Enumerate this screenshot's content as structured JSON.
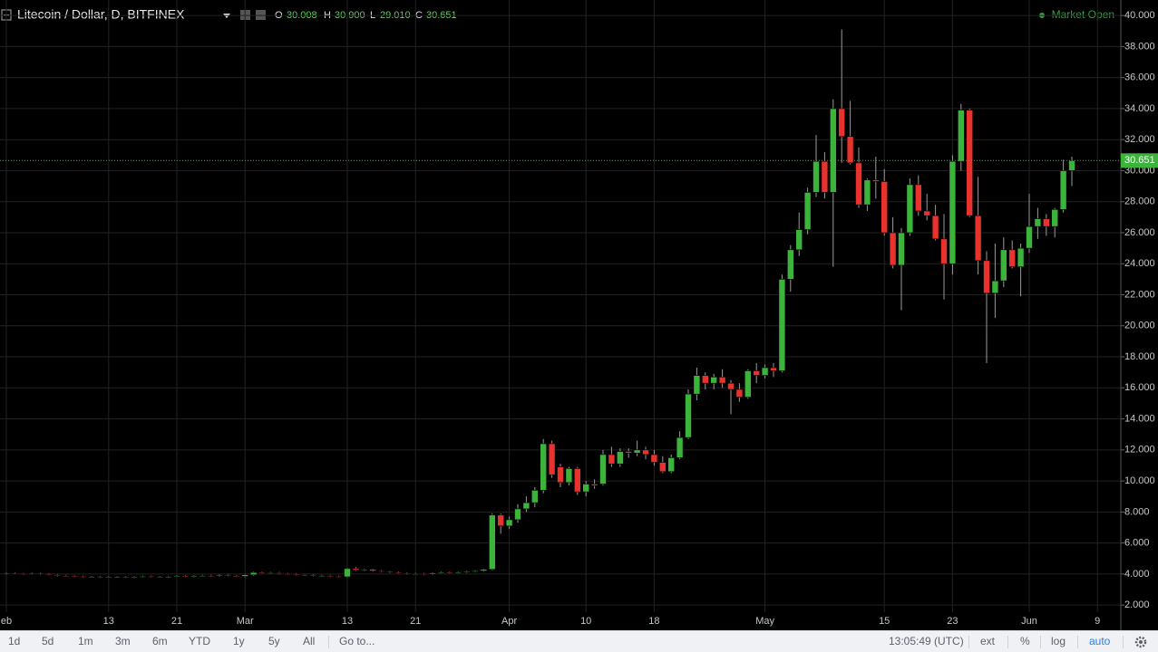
{
  "header": {
    "title": "Litecoin / Dollar, D, BITFINEX",
    "ohlc": [
      {
        "key": "O",
        "value": "30.008"
      },
      {
        "key": "H",
        "value": "30.900"
      },
      {
        "key": "L",
        "value": "29.010"
      },
      {
        "key": "C",
        "value": "30.651"
      }
    ],
    "status": "Market Open"
  },
  "chart_data": {
    "type": "candlestick",
    "up_color": "#3cb43c",
    "down_color": "#e8322e",
    "wick_color": "#9a9a9a",
    "grid": true,
    "categories": [
      "eb",
      null,
      null,
      null,
      null,
      null,
      null,
      null,
      null,
      null,
      null,
      null,
      "13",
      null,
      null,
      null,
      null,
      null,
      null,
      null,
      "21",
      null,
      null,
      null,
      null,
      null,
      null,
      null,
      "Mar",
      null,
      null,
      null,
      null,
      null,
      null,
      null,
      null,
      null,
      null,
      null,
      "13",
      null,
      null,
      null,
      null,
      null,
      null,
      null,
      "21",
      null,
      null,
      null,
      null,
      null,
      null,
      null,
      null,
      null,
      null,
      "Apr",
      null,
      null,
      null,
      null,
      null,
      null,
      null,
      null,
      "10",
      null,
      null,
      null,
      null,
      null,
      null,
      null,
      "18",
      null,
      null,
      null,
      null,
      null,
      null,
      null,
      null,
      null,
      null,
      null,
      null,
      "May",
      null,
      null,
      null,
      null,
      null,
      null,
      null,
      null,
      null,
      null,
      null,
      null,
      null,
      "15",
      null,
      null,
      null,
      null,
      null,
      null,
      null,
      "23",
      null,
      null,
      null,
      null,
      null,
      null,
      null,
      null,
      "Jun",
      null,
      null,
      null,
      null,
      null,
      null,
      null,
      "9"
    ],
    "open": [
      4.0,
      4.05,
      4.02,
      4.0,
      4.03,
      3.98,
      3.95,
      3.9,
      3.88,
      3.85,
      3.8,
      3.82,
      3.78,
      3.8,
      3.82,
      3.79,
      3.83,
      3.85,
      3.82,
      3.8,
      3.84,
      3.86,
      3.83,
      3.88,
      3.9,
      3.86,
      3.92,
      3.88,
      3.85,
      3.95,
      4.1,
      4.05,
      4.08,
      4.02,
      4.0,
      3.95,
      3.92,
      3.88,
      3.9,
      3.85,
      3.82,
      4.35,
      4.25,
      4.3,
      4.2,
      4.15,
      4.1,
      4.05,
      4.0,
      4.02,
      3.98,
      4.05,
      4.1,
      4.05,
      4.1,
      4.15,
      4.2,
      4.3,
      7.8,
      7.1,
      7.5,
      8.2,
      8.6,
      9.4,
      12.4,
      10.9,
      9.9,
      10.8,
      9.3,
      9.8,
      9.8,
      11.7,
      11.1,
      11.9,
      11.8,
      12.0,
      11.7,
      11.2,
      10.6,
      11.5,
      12.8,
      15.6,
      16.8,
      16.3,
      16.7,
      16.3,
      15.9,
      15.4,
      17.1,
      16.8,
      17.3,
      17.1,
      23.0,
      24.9,
      26.2,
      28.6,
      30.6,
      28.6,
      34.0,
      32.2,
      30.5,
      27.8,
      29.4,
      29.3,
      26.0,
      23.9,
      26.0,
      29.1,
      27.4,
      27.1,
      25.6,
      24.0,
      30.6,
      33.9,
      27.1,
      24.2,
      22.1,
      22.9,
      24.9,
      23.8,
      25.0,
      26.4,
      26.9,
      26.4,
      27.5,
      30.008,
      null,
      null,
      null
    ],
    "high": [
      4.1,
      4.1,
      4.07,
      4.08,
      4.08,
      4.03,
      4.0,
      3.95,
      3.93,
      3.9,
      3.87,
      3.87,
      3.85,
      3.87,
      3.87,
      3.88,
      3.9,
      3.9,
      3.87,
      3.89,
      3.91,
      3.91,
      3.93,
      3.95,
      3.95,
      3.97,
      3.97,
      3.93,
      4.0,
      4.15,
      4.15,
      4.13,
      4.13,
      4.07,
      4.05,
      4.0,
      3.97,
      3.95,
      3.95,
      3.9,
      4.4,
      4.45,
      4.35,
      4.35,
      4.25,
      4.2,
      4.15,
      4.1,
      4.07,
      4.07,
      4.1,
      4.15,
      4.15,
      4.15,
      4.2,
      4.25,
      4.35,
      7.9,
      7.9,
      7.7,
      8.5,
      9.0,
      9.6,
      12.7,
      12.6,
      11.1,
      10.9,
      10.9,
      10.0,
      10.1,
      12.0,
      12.2,
      12.1,
      12.1,
      12.6,
      12.2,
      12.0,
      11.6,
      11.7,
      13.2,
      15.9,
      17.3,
      17.0,
      16.9,
      17.2,
      16.5,
      16.3,
      17.2,
      17.6,
      17.5,
      17.6,
      23.3,
      25.2,
      27.3,
      28.9,
      32.3,
      31.2,
      34.6,
      39.1,
      34.5,
      31.5,
      29.5,
      30.9,
      30.1,
      27.0,
      26.3,
      29.5,
      29.7,
      28.5,
      27.8,
      27.2,
      31.0,
      34.3,
      34.0,
      29.6,
      24.8,
      25.3,
      25.7,
      25.5,
      25.3,
      28.5,
      27.6,
      27.2,
      27.6,
      30.7,
      30.9,
      null,
      null,
      null
    ],
    "low": [
      3.95,
      3.97,
      3.95,
      3.95,
      3.93,
      3.9,
      3.85,
      3.83,
      3.8,
      3.75,
      3.75,
      3.73,
      3.73,
      3.75,
      3.74,
      3.74,
      3.78,
      3.77,
      3.75,
      3.75,
      3.79,
      3.78,
      3.78,
      3.83,
      3.81,
      3.81,
      3.83,
      3.8,
      3.8,
      3.9,
      4.0,
      4.0,
      3.97,
      3.95,
      3.9,
      3.87,
      3.83,
      3.83,
      3.8,
      3.77,
      3.77,
      4.2,
      4.2,
      4.15,
      4.1,
      4.05,
      4.0,
      3.95,
      3.95,
      3.93,
      3.93,
      4.0,
      4.0,
      4.0,
      4.05,
      4.1,
      4.15,
      4.25,
      6.6,
      6.9,
      7.3,
      8.0,
      8.3,
      9.2,
      10.2,
      9.6,
      9.7,
      9.1,
      9.0,
      9.5,
      9.7,
      10.9,
      10.9,
      11.5,
      11.6,
      11.4,
      11.0,
      10.5,
      10.5,
      11.4,
      12.7,
      15.2,
      15.9,
      15.9,
      16.0,
      14.3,
      15.1,
      15.3,
      16.3,
      16.6,
      16.7,
      17.0,
      22.2,
      24.5,
      25.9,
      28.3,
      28.2,
      23.8,
      30.5,
      30.4,
      27.6,
      27.4,
      28.2,
      25.8,
      23.7,
      21.0,
      25.8,
      27.1,
      26.8,
      25.5,
      21.7,
      23.3,
      30.0,
      27.0,
      23.3,
      17.6,
      20.5,
      22.5,
      23.7,
      21.9,
      24.7,
      25.6,
      25.8,
      25.7,
      27.3,
      29.01,
      null,
      null,
      null
    ],
    "close": [
      4.05,
      4.02,
      4.0,
      4.03,
      3.98,
      3.95,
      3.9,
      3.88,
      3.85,
      3.8,
      3.82,
      3.78,
      3.8,
      3.82,
      3.79,
      3.83,
      3.85,
      3.82,
      3.8,
      3.84,
      3.86,
      3.83,
      3.88,
      3.9,
      3.86,
      3.92,
      3.88,
      3.85,
      3.95,
      4.1,
      4.05,
      4.08,
      4.02,
      4.0,
      3.95,
      3.92,
      3.88,
      3.9,
      3.85,
      3.82,
      4.35,
      4.25,
      4.3,
      4.2,
      4.15,
      4.1,
      4.05,
      4.0,
      4.02,
      3.98,
      4.05,
      4.1,
      4.05,
      4.1,
      4.15,
      4.2,
      4.3,
      7.8,
      7.1,
      7.5,
      8.2,
      8.6,
      9.4,
      12.4,
      10.4,
      9.9,
      10.8,
      9.3,
      9.8,
      9.7,
      11.7,
      11.1,
      11.9,
      11.8,
      12.0,
      11.7,
      11.2,
      10.6,
      11.5,
      12.8,
      15.6,
      16.8,
      16.3,
      16.7,
      16.3,
      15.9,
      15.4,
      17.1,
      16.8,
      17.3,
      17.1,
      23.0,
      24.9,
      26.2,
      28.6,
      30.6,
      28.6,
      34.0,
      32.2,
      30.5,
      27.8,
      29.4,
      29.3,
      26.0,
      23.9,
      26.0,
      29.1,
      27.4,
      27.1,
      25.6,
      24.0,
      30.6,
      33.9,
      27.1,
      24.2,
      22.1,
      22.9,
      24.9,
      23.8,
      25.0,
      26.4,
      26.9,
      26.4,
      27.5,
      30.0,
      30.651,
      null,
      null,
      null
    ],
    "ylim": [
      0.55,
      41.0
    ],
    "yticks": [
      {
        "value": 2,
        "label": "2.000"
      },
      {
        "value": 4,
        "label": "4.000"
      },
      {
        "value": 6,
        "label": "6.000"
      },
      {
        "value": 8,
        "label": "8.000"
      },
      {
        "value": 10,
        "label": "10.000"
      },
      {
        "value": 12,
        "label": "12.000"
      },
      {
        "value": 14,
        "label": "14.000"
      },
      {
        "value": 16,
        "label": "16.000"
      },
      {
        "value": 18,
        "label": "18.000"
      },
      {
        "value": 20,
        "label": "20.000"
      },
      {
        "value": 22,
        "label": "22.000"
      },
      {
        "value": 24,
        "label": "24.000"
      },
      {
        "value": 26,
        "label": "26.000"
      },
      {
        "value": 28,
        "label": "28.000"
      },
      {
        "value": 30,
        "label": "30.000"
      },
      {
        "value": 32,
        "label": "32.000"
      },
      {
        "value": 34,
        "label": "34.000"
      },
      {
        "value": 36,
        "label": "36.000"
      },
      {
        "value": 38,
        "label": "38.000"
      },
      {
        "value": 40,
        "label": "40.000"
      }
    ],
    "last_price": {
      "value": 30.651,
      "label": "30.651"
    }
  },
  "toolbar": {
    "ranges": [
      "1d",
      "5d",
      "1m",
      "3m",
      "6m",
      "YTD",
      "1y",
      "5y",
      "All"
    ],
    "goto": "Go to...",
    "clock": "13:05:49 (UTC)",
    "options": [
      "ext",
      "%",
      "log",
      "auto"
    ]
  }
}
